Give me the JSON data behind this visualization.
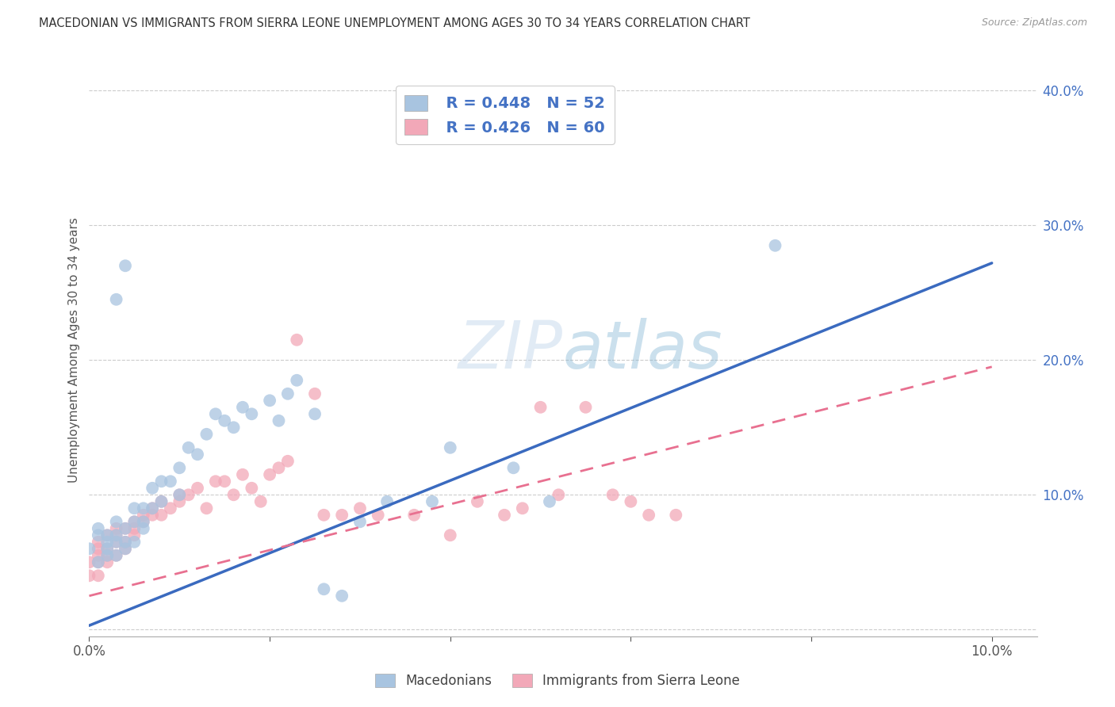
{
  "title": "MACEDONIAN VS IMMIGRANTS FROM SIERRA LEONE UNEMPLOYMENT AMONG AGES 30 TO 34 YEARS CORRELATION CHART",
  "source": "Source: ZipAtlas.com",
  "ylabel": "Unemployment Among Ages 30 to 34 years",
  "xlim": [
    0.0,
    0.105
  ],
  "ylim": [
    -0.005,
    0.42
  ],
  "yticks_right": [
    0.0,
    0.1,
    0.2,
    0.3,
    0.4
  ],
  "yticklabels_right": [
    "",
    "10.0%",
    "20.0%",
    "30.0%",
    "40.0%"
  ],
  "macedonians_color": "#a8c4e0",
  "sierra_leone_color": "#f2a8b8",
  "mac_line_color": "#3a6abf",
  "sl_line_color": "#e87090",
  "watermark": "ZIPatlas",
  "mac_line_x0": 0.0,
  "mac_line_y0": 0.003,
  "mac_line_x1": 0.1,
  "mac_line_y1": 0.272,
  "sl_line_x0": 0.0,
  "sl_line_y0": 0.025,
  "sl_line_x1": 0.1,
  "sl_line_y1": 0.195,
  "macedonians_x": [
    0.0,
    0.001,
    0.001,
    0.001,
    0.002,
    0.002,
    0.002,
    0.002,
    0.003,
    0.003,
    0.003,
    0.003,
    0.004,
    0.004,
    0.004,
    0.005,
    0.005,
    0.005,
    0.006,
    0.006,
    0.006,
    0.007,
    0.007,
    0.008,
    0.008,
    0.009,
    0.01,
    0.01,
    0.011,
    0.012,
    0.013,
    0.014,
    0.015,
    0.016,
    0.017,
    0.018,
    0.02,
    0.021,
    0.022,
    0.023,
    0.025,
    0.026,
    0.028,
    0.03,
    0.033,
    0.038,
    0.04,
    0.047,
    0.051,
    0.076,
    0.003,
    0.004
  ],
  "macedonians_y": [
    0.06,
    0.05,
    0.07,
    0.075,
    0.055,
    0.065,
    0.07,
    0.06,
    0.055,
    0.065,
    0.07,
    0.08,
    0.06,
    0.065,
    0.075,
    0.065,
    0.08,
    0.09,
    0.075,
    0.08,
    0.09,
    0.09,
    0.105,
    0.095,
    0.11,
    0.11,
    0.1,
    0.12,
    0.135,
    0.13,
    0.145,
    0.16,
    0.155,
    0.15,
    0.165,
    0.16,
    0.17,
    0.155,
    0.175,
    0.185,
    0.16,
    0.03,
    0.025,
    0.08,
    0.095,
    0.095,
    0.135,
    0.12,
    0.095,
    0.285,
    0.245,
    0.27
  ],
  "sierra_leone_x": [
    0.0,
    0.0,
    0.001,
    0.001,
    0.001,
    0.001,
    0.001,
    0.002,
    0.002,
    0.002,
    0.002,
    0.003,
    0.003,
    0.003,
    0.003,
    0.004,
    0.004,
    0.004,
    0.005,
    0.005,
    0.005,
    0.006,
    0.006,
    0.007,
    0.007,
    0.008,
    0.008,
    0.009,
    0.01,
    0.01,
    0.011,
    0.012,
    0.013,
    0.014,
    0.015,
    0.016,
    0.017,
    0.018,
    0.019,
    0.02,
    0.021,
    0.022,
    0.023,
    0.025,
    0.026,
    0.028,
    0.03,
    0.032,
    0.036,
    0.04,
    0.043,
    0.046,
    0.048,
    0.05,
    0.052,
    0.055,
    0.058,
    0.06,
    0.062,
    0.065
  ],
  "sierra_leone_y": [
    0.04,
    0.05,
    0.04,
    0.05,
    0.055,
    0.06,
    0.065,
    0.05,
    0.055,
    0.06,
    0.07,
    0.055,
    0.065,
    0.07,
    0.075,
    0.06,
    0.065,
    0.075,
    0.07,
    0.075,
    0.08,
    0.08,
    0.085,
    0.085,
    0.09,
    0.085,
    0.095,
    0.09,
    0.095,
    0.1,
    0.1,
    0.105,
    0.09,
    0.11,
    0.11,
    0.1,
    0.115,
    0.105,
    0.095,
    0.115,
    0.12,
    0.125,
    0.215,
    0.175,
    0.085,
    0.085,
    0.09,
    0.085,
    0.085,
    0.07,
    0.095,
    0.085,
    0.09,
    0.165,
    0.1,
    0.165,
    0.1,
    0.095,
    0.085,
    0.085
  ]
}
